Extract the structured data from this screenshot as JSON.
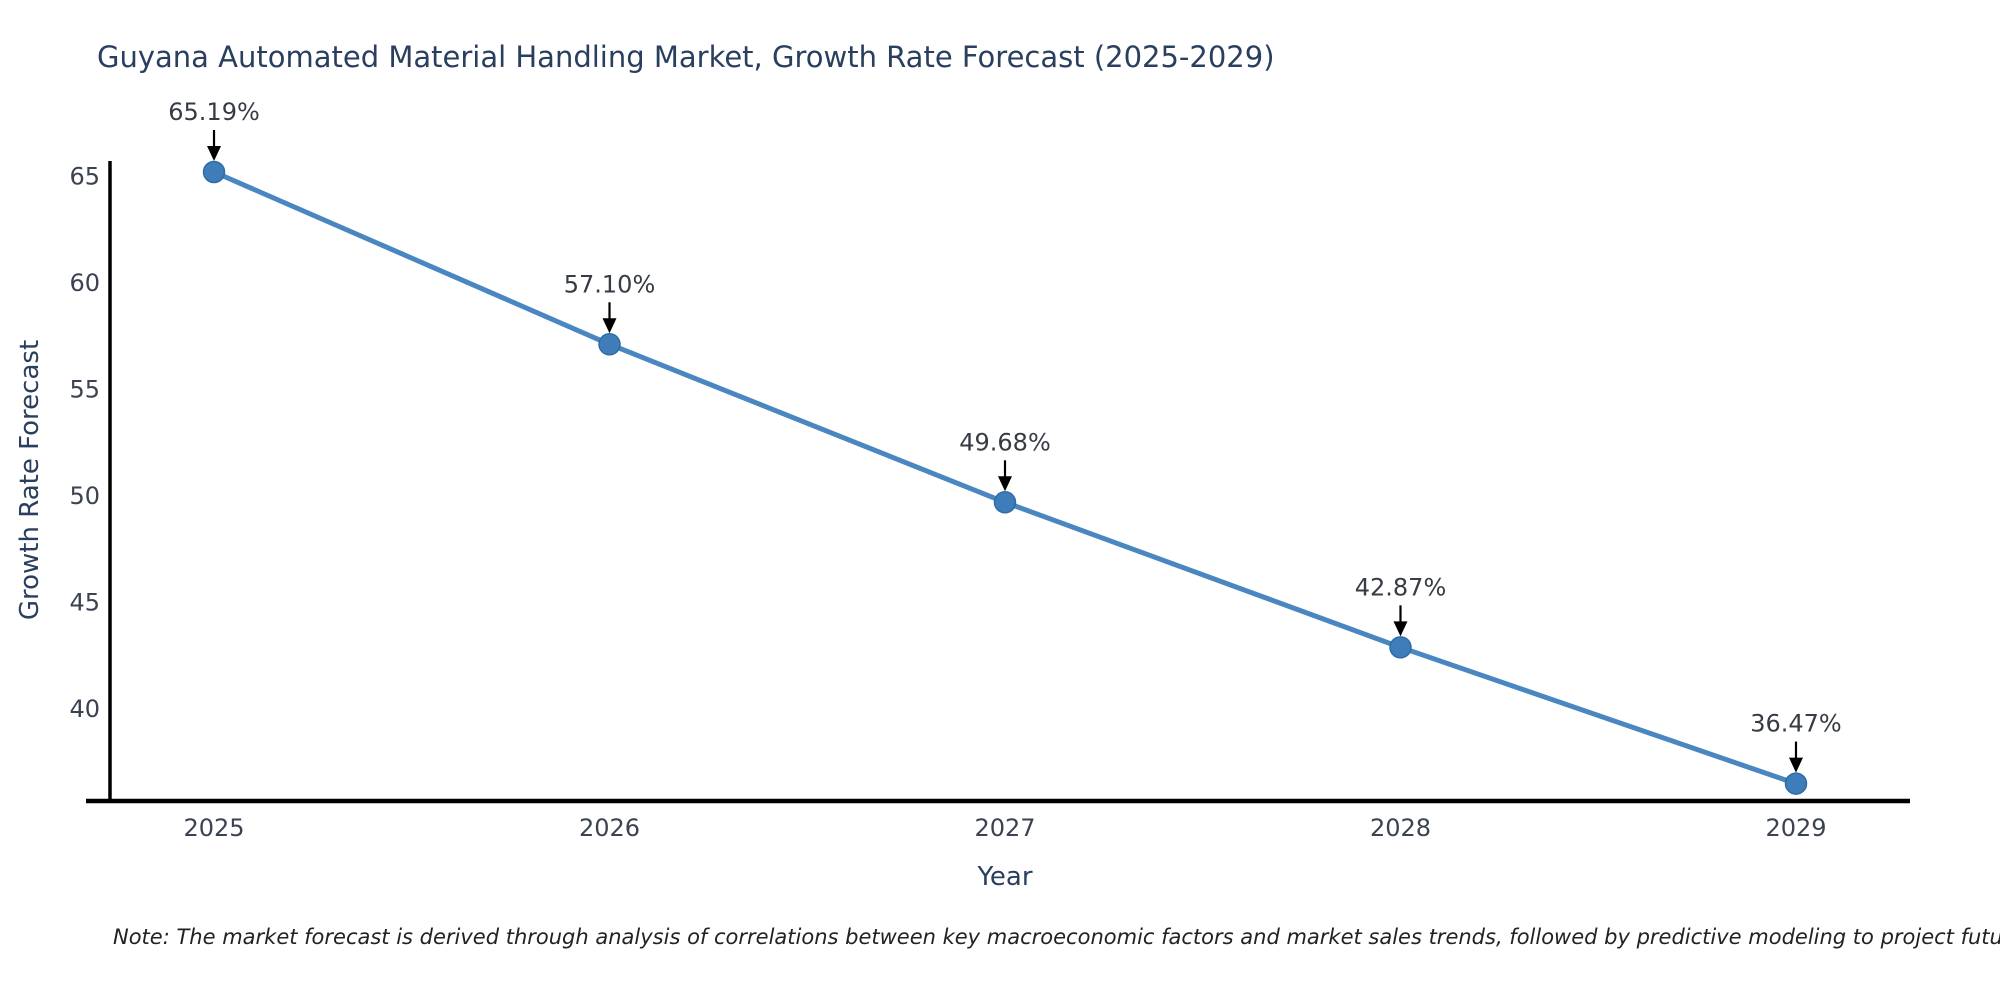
{
  "chart": {
    "title": "Guyana Automated Material Handling Market, Growth Rate Forecast (2025-2029)",
    "xlabel": "Year",
    "ylabel": "Growth Rate Forecast",
    "note": "Note: The market forecast is derived through analysis of correlations between key macroeconomic factors and market sales trends, followed by predictive modeling to project future sales"
  },
  "chart_data": {
    "type": "line",
    "title": "Guyana Automated Material Handling Market, Growth Rate Forecast (2025-2029)",
    "xlabel": "Year",
    "ylabel": "Growth Rate Forecast",
    "x": [
      2025,
      2026,
      2027,
      2028,
      2029
    ],
    "values": [
      65.19,
      57.1,
      49.68,
      42.87,
      36.47
    ],
    "point_labels": [
      "65.19%",
      "57.10%",
      "49.68%",
      "42.87%",
      "36.47%"
    ],
    "x_ticks": [
      "2025",
      "2026",
      "2027",
      "2028",
      "2029"
    ],
    "y_ticks": [
      40,
      45,
      50,
      55,
      60,
      65
    ],
    "xlim": [
      2024.737,
      2029.263
    ],
    "ylim": [
      35.7,
      65.66
    ],
    "grid": false,
    "legend": false,
    "colors": {
      "line": "#4a87c1",
      "marker_fill": "#3f7cba",
      "marker_edge": "#2e6da4",
      "axis": "#000000",
      "annotation_arrow": "#000000",
      "annotation_text": "#363b44",
      "tick_text": "#3b4252",
      "title_text": "#2a3f5f"
    }
  }
}
